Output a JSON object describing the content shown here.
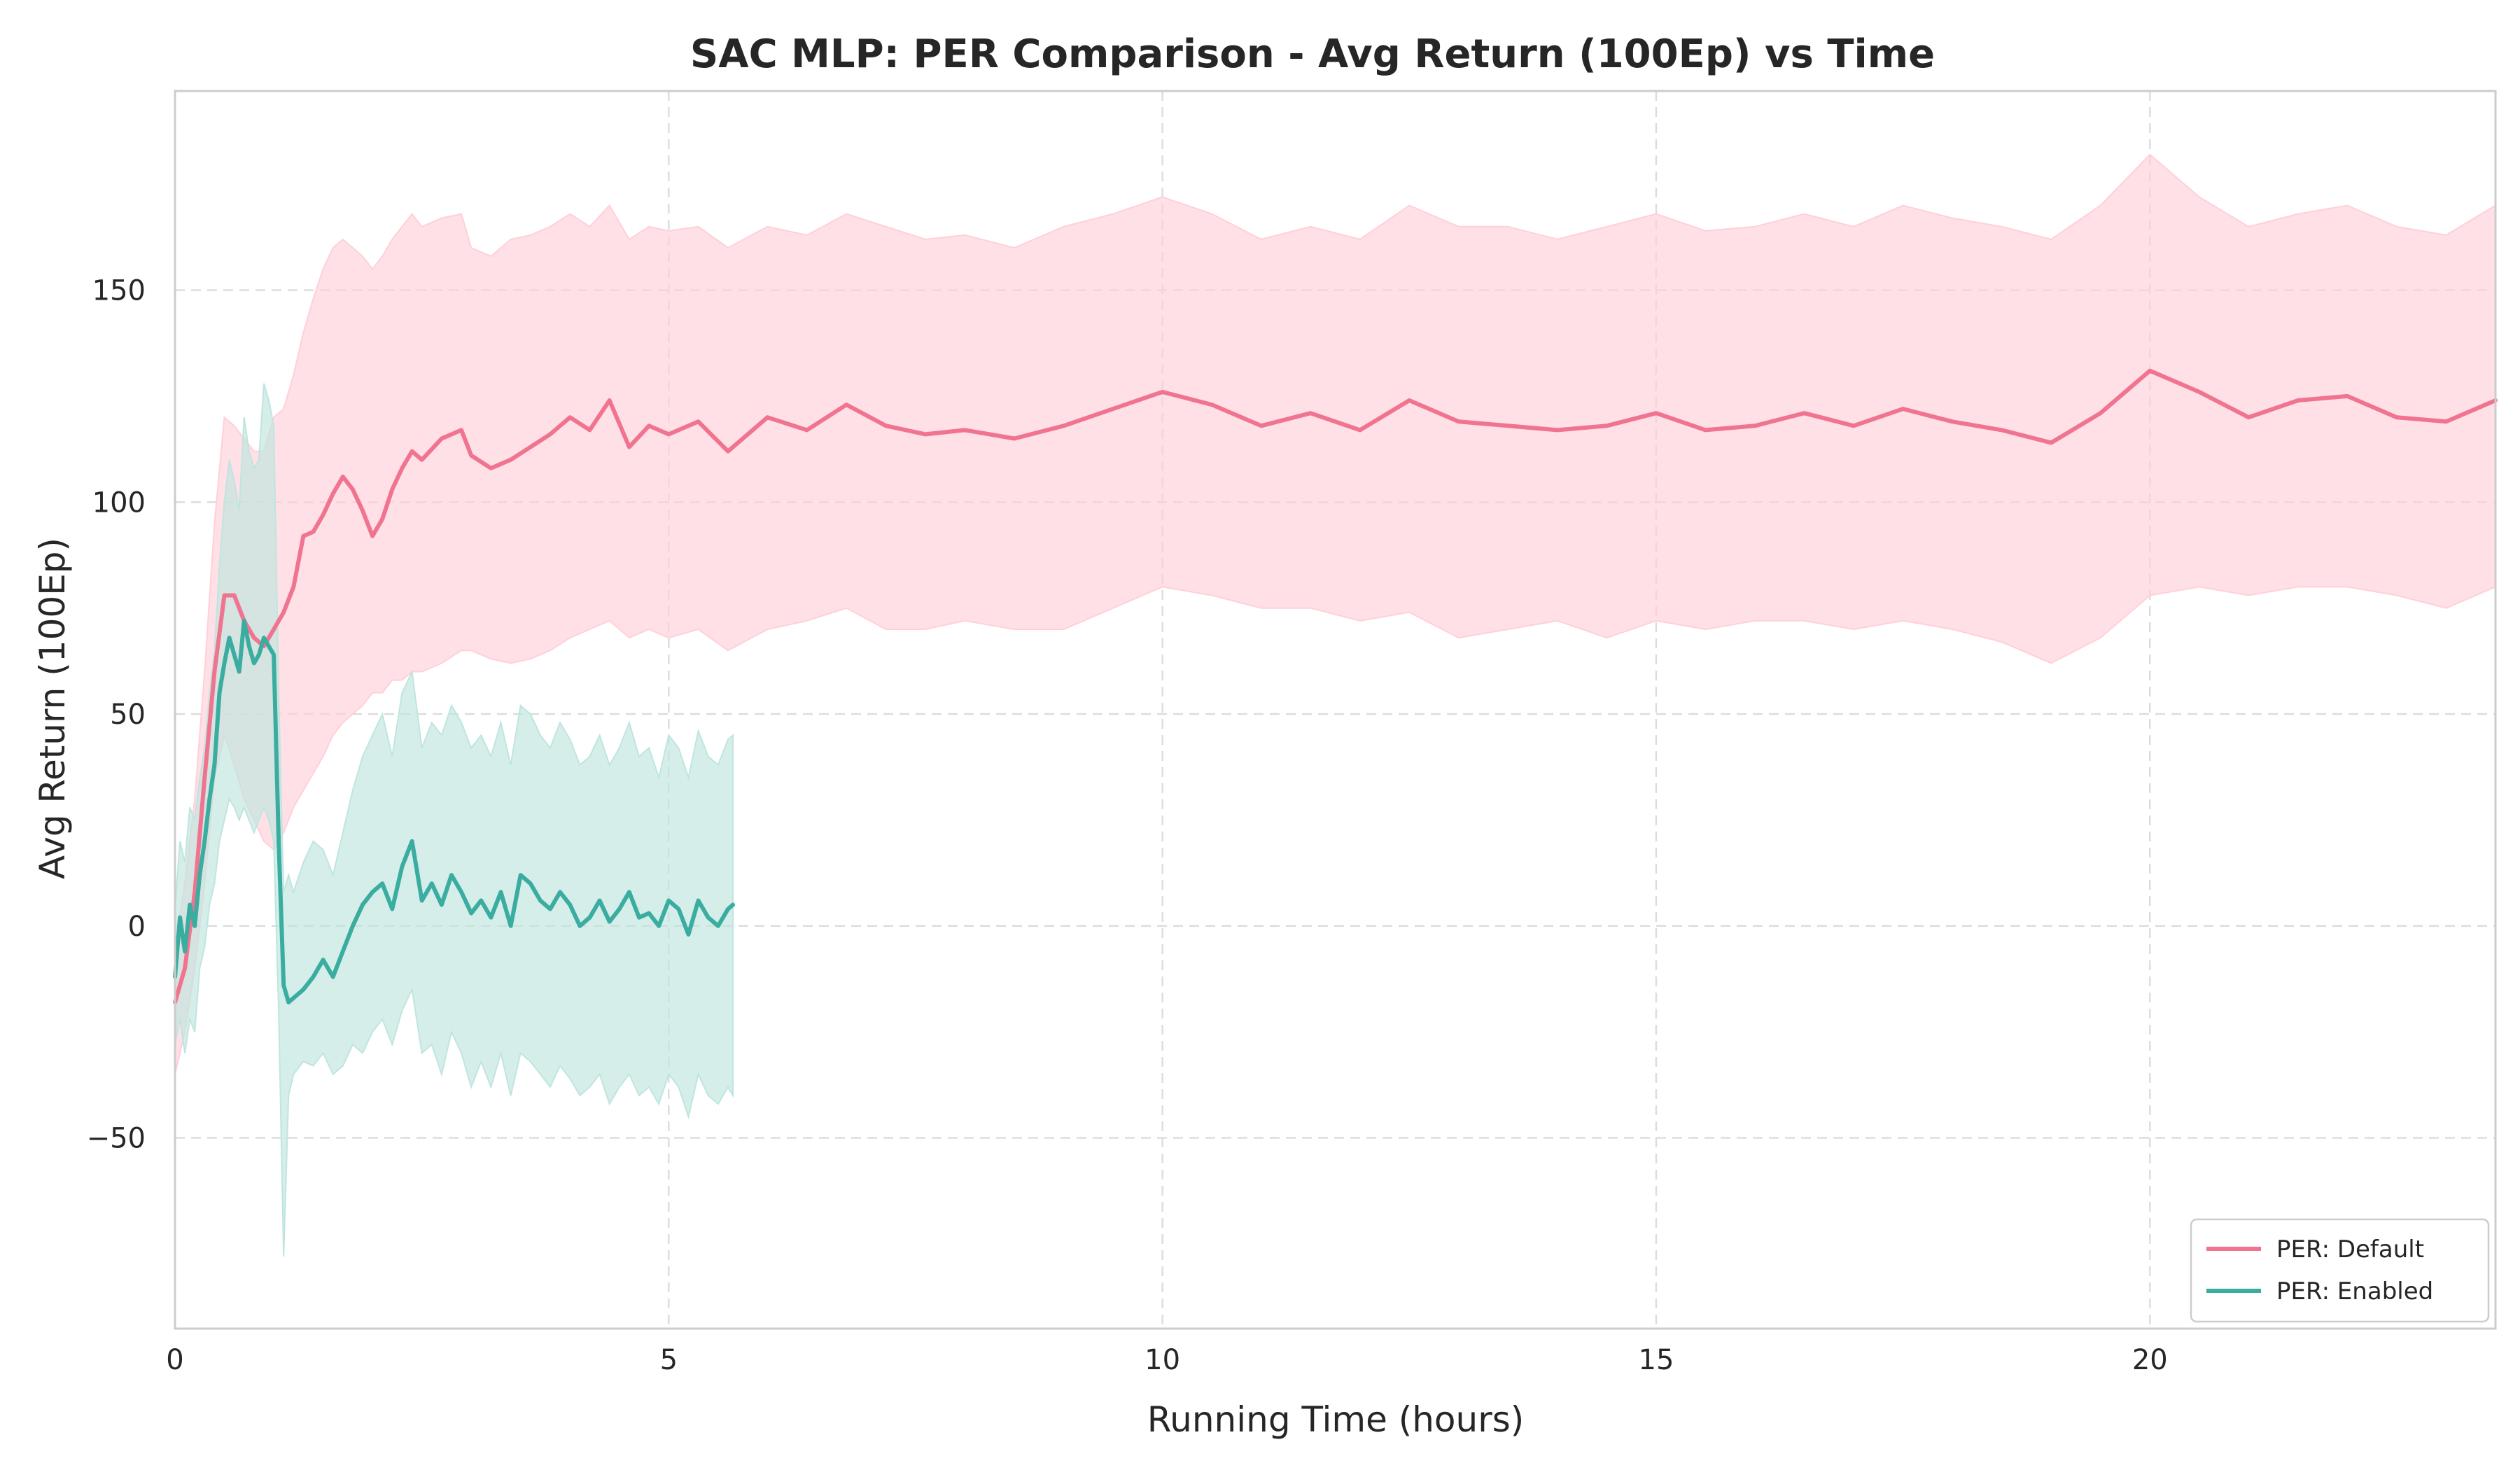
{
  "chart_data": {
    "type": "line",
    "title": "SAC MLP: PER Comparison - Avg Return (100Ep) vs Time",
    "xlabel": "Running Time (hours)",
    "ylabel": "Avg Return (100Ep)",
    "xlim": [
      0,
      23.5
    ],
    "ylim": [
      -95,
      197
    ],
    "xticks": [
      0,
      5,
      10,
      15,
      20
    ],
    "xtick_labels": [
      "0",
      "5",
      "10",
      "15",
      "20"
    ],
    "yticks": [
      -50,
      0,
      50,
      100,
      150
    ],
    "ytick_labels": [
      "−50",
      "0",
      "50",
      "100",
      "150"
    ],
    "grid": true,
    "legend_position": "lower-right",
    "series": [
      {
        "name": "PER: Default",
        "color": "#f0748f",
        "band_color": "#ffd0d8",
        "x": [
          0,
          0.1,
          0.2,
          0.3,
          0.4,
          0.5,
          0.6,
          0.7,
          0.8,
          0.9,
          1.0,
          1.1,
          1.2,
          1.3,
          1.4,
          1.5,
          1.6,
          1.7,
          1.8,
          1.9,
          2.0,
          2.1,
          2.2,
          2.3,
          2.4,
          2.5,
          2.7,
          2.9,
          3.0,
          3.2,
          3.4,
          3.6,
          3.8,
          4.0,
          4.2,
          4.4,
          4.6,
          4.8,
          5.0,
          5.3,
          5.6,
          6.0,
          6.4,
          6.8,
          7.2,
          7.6,
          8.0,
          8.5,
          9.0,
          9.5,
          10.0,
          10.5,
          11.0,
          11.5,
          12.0,
          12.5,
          13.0,
          13.5,
          14.0,
          14.5,
          15.0,
          15.5,
          16.0,
          16.5,
          17.0,
          17.5,
          18.0,
          18.5,
          19.0,
          19.5,
          20.0,
          20.5,
          21.0,
          21.5,
          22.0,
          22.5,
          23.0,
          23.5
        ],
        "values": [
          -18,
          -10,
          8,
          35,
          60,
          78,
          78,
          72,
          68,
          66,
          70,
          74,
          80,
          92,
          93,
          97,
          102,
          106,
          103,
          98,
          92,
          96,
          103,
          108,
          112,
          110,
          115,
          117,
          111,
          108,
          110,
          113,
          116,
          120,
          117,
          124,
          113,
          118,
          116,
          119,
          112,
          120,
          117,
          123,
          118,
          116,
          117,
          115,
          118,
          122,
          126,
          123,
          118,
          121,
          117,
          124,
          119,
          118,
          117,
          118,
          121,
          117,
          118,
          121,
          118,
          122,
          119,
          117,
          114,
          121,
          131,
          126,
          120,
          124,
          125,
          120,
          119,
          124
        ],
        "lower": [
          -35,
          -25,
          -10,
          10,
          35,
          45,
          38,
          30,
          25,
          20,
          18,
          22,
          28,
          32,
          36,
          40,
          45,
          48,
          50,
          52,
          55,
          55,
          58,
          58,
          60,
          60,
          62,
          65,
          65,
          63,
          62,
          63,
          65,
          68,
          70,
          72,
          68,
          70,
          68,
          70,
          65,
          70,
          72,
          75,
          70,
          70,
          72,
          70,
          70,
          75,
          80,
          78,
          75,
          75,
          72,
          74,
          68,
          70,
          72,
          68,
          72,
          70,
          72,
          72,
          70,
          72,
          70,
          67,
          62,
          68,
          78,
          80,
          78,
          80,
          80,
          78,
          75,
          80
        ],
        "upper": [
          -5,
          10,
          30,
          60,
          95,
          120,
          118,
          115,
          112,
          112,
          120,
          122,
          130,
          140,
          148,
          155,
          160,
          162,
          160,
          158,
          155,
          158,
          162,
          165,
          168,
          165,
          167,
          168,
          160,
          158,
          162,
          163,
          165,
          168,
          165,
          170,
          162,
          165,
          164,
          165,
          160,
          165,
          163,
          168,
          165,
          162,
          163,
          160,
          165,
          168,
          172,
          168,
          162,
          165,
          162,
          170,
          165,
          165,
          162,
          165,
          168,
          164,
          165,
          168,
          165,
          170,
          167,
          165,
          162,
          170,
          182,
          172,
          165,
          168,
          170,
          165,
          163,
          170
        ]
      },
      {
        "name": "PER: Enabled",
        "color": "#3aada0",
        "band_color": "#bfe5df",
        "x": [
          0,
          0.05,
          0.1,
          0.15,
          0.2,
          0.25,
          0.3,
          0.35,
          0.4,
          0.45,
          0.5,
          0.55,
          0.6,
          0.65,
          0.7,
          0.75,
          0.8,
          0.85,
          0.9,
          0.95,
          1.0,
          1.05,
          1.1,
          1.15,
          1.2,
          1.3,
          1.4,
          1.5,
          1.6,
          1.7,
          1.8,
          1.9,
          2.0,
          2.1,
          2.2,
          2.3,
          2.4,
          2.5,
          2.6,
          2.7,
          2.8,
          2.9,
          3.0,
          3.1,
          3.2,
          3.3,
          3.4,
          3.5,
          3.6,
          3.7,
          3.8,
          3.9,
          4.0,
          4.1,
          4.2,
          4.3,
          4.4,
          4.5,
          4.6,
          4.7,
          4.8,
          4.9,
          5.0,
          5.1,
          5.2,
          5.3,
          5.4,
          5.5,
          5.6,
          5.65
        ],
        "values": [
          -12,
          2,
          -6,
          5,
          0,
          12,
          20,
          30,
          38,
          55,
          62,
          68,
          64,
          60,
          72,
          66,
          62,
          64,
          68,
          66,
          64,
          20,
          -14,
          -18,
          -17,
          -15,
          -12,
          -8,
          -12,
          -6,
          0,
          5,
          8,
          10,
          4,
          14,
          20,
          6,
          10,
          5,
          12,
          8,
          3,
          6,
          2,
          8,
          0,
          12,
          10,
          6,
          4,
          8,
          5,
          0,
          2,
          6,
          1,
          4,
          8,
          2,
          3,
          0,
          6,
          4,
          -2,
          6,
          2,
          0,
          4,
          5
        ],
        "lower": [
          -28,
          -22,
          -30,
          -22,
          -25,
          -10,
          -5,
          5,
          10,
          20,
          25,
          30,
          28,
          25,
          28,
          25,
          22,
          25,
          28,
          25,
          20,
          -20,
          -78,
          -40,
          -35,
          -32,
          -33,
          -30,
          -35,
          -33,
          -28,
          -30,
          -25,
          -22,
          -28,
          -20,
          -15,
          -30,
          -28,
          -35,
          -25,
          -30,
          -38,
          -32,
          -38,
          -30,
          -40,
          -30,
          -32,
          -35,
          -38,
          -33,
          -36,
          -40,
          -38,
          -35,
          -42,
          -38,
          -35,
          -40,
          -38,
          -42,
          -35,
          -38,
          -45,
          -35,
          -40,
          -42,
          -38,
          -40
        ],
        "upper": [
          4,
          20,
          15,
          28,
          25,
          35,
          42,
          55,
          65,
          85,
          100,
          110,
          105,
          98,
          120,
          112,
          108,
          110,
          128,
          124,
          118,
          55,
          8,
          12,
          8,
          15,
          20,
          18,
          12,
          22,
          32,
          40,
          45,
          50,
          40,
          55,
          60,
          42,
          48,
          45,
          52,
          48,
          42,
          45,
          40,
          48,
          38,
          52,
          50,
          45,
          42,
          48,
          44,
          38,
          40,
          45,
          38,
          42,
          48,
          40,
          42,
          35,
          45,
          42,
          35,
          46,
          40,
          38,
          44,
          45
        ]
      }
    ]
  }
}
